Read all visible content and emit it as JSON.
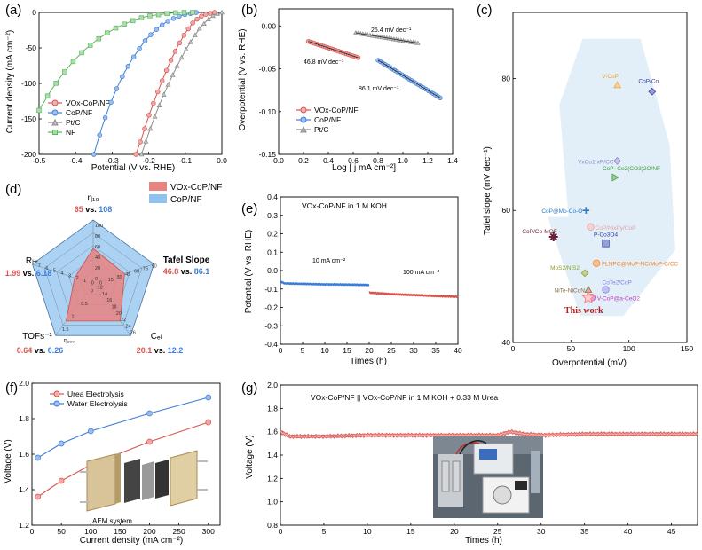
{
  "colors": {
    "red": "#d9534f",
    "blue": "#3b7dd8",
    "gray": "#8c8c8c",
    "green": "#5cb85c",
    "star": "#6b1f3a"
  },
  "panel_a": {
    "letter": "(a)",
    "xlabel": "Potential (V vs. RHE)",
    "ylabel": "Current density (mA cm⁻²)",
    "legend": [
      "VOx-CoP/NF",
      "CoP/NF",
      "Pt/C",
      "NF"
    ]
  },
  "panel_b": {
    "letter": "(b)",
    "xlabel": "Log [ j mA cm⁻²]",
    "ylabel": "Overpotential (V vs. RHE)",
    "legend": [
      "VOx-CoP/NF",
      "CoP/NF",
      "Pt/C"
    ],
    "annotations": [
      "25.4 mV dec⁻¹",
      "46.8 mV dec⁻¹",
      "86.1 mV dec⁻¹"
    ]
  },
  "panel_c": {
    "letter": "(c)",
    "xlabel": "Overpotential (mV)",
    "ylabel": "Tafel slope (mV dec⁻¹)",
    "this_work": "This work"
  },
  "panel_d": {
    "letter": "(d)",
    "legend": [
      "VOx-CoP/NF",
      "CoP/NF"
    ],
    "axes": {
      "eta": "η₁₀",
      "tafel": "Tafel Slope",
      "cdl": "Cₑₗ",
      "tofs": "TOFs⁻¹",
      "tofs_sub": "η₁₀₀",
      "rct": "Rₕₜ"
    },
    "values": {
      "eta": [
        "65",
        " vs. ",
        "108"
      ],
      "tafel": [
        "46.8",
        " vs. ",
        "86.1"
      ],
      "cdl": [
        "20.1",
        " vs. ",
        "12.2"
      ],
      "tofs": [
        "0.64",
        " vs. ",
        "0.26"
      ],
      "rct": [
        "1.99",
        " vs. ",
        "6.18"
      ]
    }
  },
  "panel_e": {
    "letter": "(e)",
    "title": "VOx-CoP/NF in 1 M KOH",
    "xlabel": "Times (h)",
    "ylabel": "Potential (V vs. RHE)",
    "annotations": [
      "10 mA cm⁻²",
      "100 mA cm⁻²"
    ]
  },
  "panel_f": {
    "letter": "(f)",
    "xlabel": "Current density (mA cm⁻²)",
    "ylabel": "Voltage (V)",
    "legend": [
      "Urea Electrolysis",
      "Water Electrolysis"
    ],
    "inset_label": "AEM system"
  },
  "panel_g": {
    "letter": "(g)",
    "title": "VOx-CoP/NF || VOx-CoP/NF in 1 M KOH + 0.33 M Urea",
    "xlabel": "Times (h)",
    "ylabel": "Voltage (V)"
  },
  "chart_data": [
    {
      "id": "a",
      "type": "line",
      "xlabel": "Potential (V vs. RHE)",
      "ylabel": "Current density (mA cm-2)",
      "xlim": [
        -0.5,
        0.0
      ],
      "ylim": [
        -200,
        0
      ],
      "xticks": [
        -0.5,
        -0.4,
        -0.3,
        -0.2,
        -0.1,
        0.0
      ],
      "yticks": [
        -200,
        -150,
        -100,
        -50,
        0
      ],
      "series": [
        {
          "name": "VOx-CoP/NF",
          "marker": "circle",
          "color": "red",
          "x": [
            -0.235,
            -0.22,
            -0.2,
            -0.18,
            -0.16,
            -0.14,
            -0.12,
            -0.1,
            -0.08,
            -0.06,
            -0.04,
            -0.02
          ],
          "y": [
            -200,
            -178,
            -146,
            -118,
            -92,
            -68,
            -47,
            -29,
            -15,
            -6,
            -2,
            0
          ]
        },
        {
          "name": "CoP/NF",
          "marker": "circle",
          "color": "blue",
          "x": [
            -0.35,
            -0.33,
            -0.31,
            -0.29,
            -0.27,
            -0.25,
            -0.23,
            -0.21,
            -0.19,
            -0.17,
            -0.15,
            -0.13,
            -0.11,
            -0.09,
            -0.07
          ],
          "y": [
            -200,
            -165,
            -135,
            -110,
            -88,
            -70,
            -54,
            -40,
            -29,
            -20,
            -13,
            -8,
            -4,
            -2,
            0
          ]
        },
        {
          "name": "Pt/C",
          "marker": "triangle",
          "color": "gray",
          "x": [
            -0.22,
            -0.2,
            -0.18,
            -0.16,
            -0.14,
            -0.12,
            -0.1,
            -0.08,
            -0.06,
            -0.04,
            -0.02,
            0.0
          ],
          "y": [
            -200,
            -170,
            -142,
            -117,
            -94,
            -73,
            -54,
            -37,
            -22,
            -11,
            -3,
            0
          ]
        },
        {
          "name": "NF",
          "marker": "square",
          "color": "green",
          "x": [
            -0.5,
            -0.47,
            -0.44,
            -0.41,
            -0.38,
            -0.35,
            -0.32,
            -0.29,
            -0.26,
            -0.23,
            -0.2,
            -0.17,
            -0.14,
            -0.11,
            -0.08
          ],
          "y": [
            -138,
            -112,
            -90,
            -71,
            -55,
            -42,
            -31,
            -22,
            -15,
            -9,
            -5,
            -3,
            -1,
            0,
            0
          ]
        }
      ]
    },
    {
      "id": "b",
      "type": "line",
      "xlabel": "Log [ j mA cm-2]",
      "ylabel": "Overpotential (V vs. RHE)",
      "xlim": [
        0.0,
        1.4
      ],
      "ylim": [
        -0.15,
        0.02
      ],
      "xticks": [
        0.0,
        0.2,
        0.4,
        0.6,
        0.8,
        1.0,
        1.2,
        1.4
      ],
      "yticks": [
        -0.15,
        -0.1,
        -0.05,
        0.0
      ],
      "series": [
        {
          "name": "VOx-CoP/NF",
          "marker": "circle",
          "color": "red",
          "x": [
            0.24,
            0.64
          ],
          "y": [
            -0.018,
            -0.037
          ]
        },
        {
          "name": "CoP/NF",
          "marker": "circle",
          "color": "blue",
          "x": [
            0.8,
            1.3
          ],
          "y": [
            -0.04,
            -0.084
          ]
        },
        {
          "name": "Pt/C",
          "marker": "triangle",
          "color": "gray",
          "x": [
            0.62,
            1.12
          ],
          "y": [
            -0.008,
            -0.02
          ]
        }
      ]
    },
    {
      "id": "c",
      "type": "scatter",
      "xlabel": "Overpotential (mV)",
      "ylabel": "Tafel slope (mV dec-1)",
      "xlim": [
        0,
        150
      ],
      "ylim": [
        40,
        90
      ],
      "xticks": [
        0,
        50,
        100,
        150
      ],
      "yticks": [
        40,
        60,
        80
      ],
      "points": [
        {
          "label": "V-CoP",
          "x": 90,
          "y": 79,
          "color": "#f0a030",
          "marker": "triangle"
        },
        {
          "label": "CoP/Co",
          "x": 120,
          "y": 78,
          "color": "#3a3aa0",
          "marker": "diamond"
        },
        {
          "label": "VxCo1-xP/CC",
          "x": 90,
          "y": 67.5,
          "color": "#8888cc",
          "marker": "diamond"
        },
        {
          "label": "CoP–Ce2(CO3)2O/NF",
          "x": 88,
          "y": 65,
          "color": "#3d9e3d",
          "marker": "triangle-right"
        },
        {
          "label": "CoP@Mo-Co-O",
          "x": 63,
          "y": 60,
          "color": "#2d7ac9",
          "marker": "plus"
        },
        {
          "label": "CoP/Co-MOF",
          "x": 35,
          "y": 56,
          "color": "#6b1f3a",
          "marker": "asterisk"
        },
        {
          "label": "CoP/NixPy/CoP",
          "x": 67,
          "y": 57.5,
          "color": "#e6a0a8",
          "marker": "circle"
        },
        {
          "label": "P-Co3O4",
          "x": 80,
          "y": 55,
          "color": "#2a3fa8",
          "marker": "square"
        },
        {
          "label": "MoS2/NiS2",
          "x": 62,
          "y": 50.5,
          "color": "#8aa030",
          "marker": "diamond"
        },
        {
          "label": "FLNPC@MoP-NC/MoP-C/CC",
          "x": 72,
          "y": 52,
          "color": "#f08020",
          "marker": "circle"
        },
        {
          "label": "CoTe2/CoP",
          "x": 80,
          "y": 48,
          "color": "#8080e0",
          "marker": "circle"
        },
        {
          "label": "NiTe-NiCoN",
          "x": 65,
          "y": 48,
          "color": "#8a6a3a",
          "marker": "triangle"
        },
        {
          "label": "V-CoP@a-CeO2",
          "x": 68,
          "y": 46.8,
          "color": "#c040c0",
          "marker": "circle"
        },
        {
          "label": "This work",
          "x": 65,
          "y": 46.8,
          "color": "#ff8080",
          "marker": "star"
        }
      ]
    },
    {
      "id": "d",
      "type": "radar",
      "axes": [
        "η10",
        "Tafel Slope",
        "Cdl",
        "TOFs-1 η100",
        "Rct"
      ],
      "series": [
        {
          "name": "VOx-CoP/NF",
          "values": [
            65,
            46.8,
            20.1,
            0.64,
            1.99
          ]
        },
        {
          "name": "CoP/NF",
          "values": [
            108,
            86.1,
            12.2,
            0.26,
            6.18
          ]
        }
      ],
      "scales": {
        "eta": [
          0,
          20,
          40,
          60,
          80,
          100
        ],
        "tafel": [
          0,
          15,
          30,
          45,
          60,
          75,
          90
        ],
        "cdl": [
          12,
          14,
          16,
          18,
          20,
          22,
          24,
          26
        ],
        "tofs": [
          0.0,
          0.5,
          1.0,
          1.5
        ],
        "rct": [
          0,
          1,
          2,
          3,
          4,
          5,
          6,
          7
        ]
      }
    },
    {
      "id": "e",
      "type": "line",
      "title": "VOx-CoP/NF in 1 M KOH",
      "xlabel": "Times (h)",
      "ylabel": "Potential (V vs. RHE)",
      "xlim": [
        0,
        40
      ],
      "ylim": [
        -0.4,
        0.4
      ],
      "xticks": [
        0,
        5,
        10,
        15,
        20,
        25,
        30,
        35,
        40
      ],
      "yticks": [
        -0.4,
        -0.3,
        -0.2,
        -0.1,
        0.0,
        0.1,
        0.2,
        0.3,
        0.4
      ],
      "series": [
        {
          "name": "10 mA cm-2",
          "color": "blue",
          "x": [
            0,
            1,
            5,
            10,
            15,
            20
          ],
          "y": [
            -0.06,
            -0.07,
            -0.072,
            -0.075,
            -0.076,
            -0.078
          ]
        },
        {
          "name": "100 mA cm-2",
          "color": "red",
          "x": [
            20,
            25,
            30,
            35,
            40
          ],
          "y": [
            -0.12,
            -0.128,
            -0.133,
            -0.138,
            -0.142
          ]
        }
      ]
    },
    {
      "id": "f",
      "type": "line",
      "xlabel": "Current density (mA cm-2)",
      "ylabel": "Voltage (V)",
      "xlim": [
        0,
        320
      ],
      "ylim": [
        1.2,
        2.0
      ],
      "xticks": [
        0,
        50,
        100,
        150,
        200,
        250,
        300
      ],
      "yticks": [
        1.2,
        1.4,
        1.6,
        1.8,
        2.0
      ],
      "series": [
        {
          "name": "Urea Electrolysis",
          "color": "red",
          "x": [
            10,
            50,
            100,
            200,
            300
          ],
          "y": [
            1.36,
            1.45,
            1.54,
            1.67,
            1.78
          ]
        },
        {
          "name": "Water Electrolysis",
          "color": "blue",
          "x": [
            10,
            50,
            100,
            200,
            300
          ],
          "y": [
            1.58,
            1.66,
            1.73,
            1.83,
            1.92
          ]
        }
      ]
    },
    {
      "id": "g",
      "type": "line",
      "title": "VOx-CoP/NF || VOx-CoP/NF in 1 M KOH + 0.33 M Urea",
      "xlabel": "Times (h)",
      "ylabel": "Voltage (V)",
      "xlim": [
        0,
        48
      ],
      "ylim": [
        0.8,
        2.0
      ],
      "xticks": [
        0,
        5,
        10,
        15,
        20,
        25,
        30,
        35,
        40,
        45
      ],
      "yticks": [
        0.8,
        1.0,
        1.2,
        1.4,
        1.6,
        1.8,
        2.0
      ],
      "series": [
        {
          "name": "VOx-CoP/NF || VOx-CoP/NF",
          "color": "red",
          "x": [
            0,
            1,
            5,
            10,
            15,
            20,
            25,
            26.5,
            28,
            30,
            35,
            40,
            45,
            48
          ],
          "y": [
            1.6,
            1.56,
            1.56,
            1.57,
            1.57,
            1.57,
            1.57,
            1.6,
            1.58,
            1.57,
            1.58,
            1.58,
            1.58,
            1.58
          ]
        }
      ]
    }
  ]
}
